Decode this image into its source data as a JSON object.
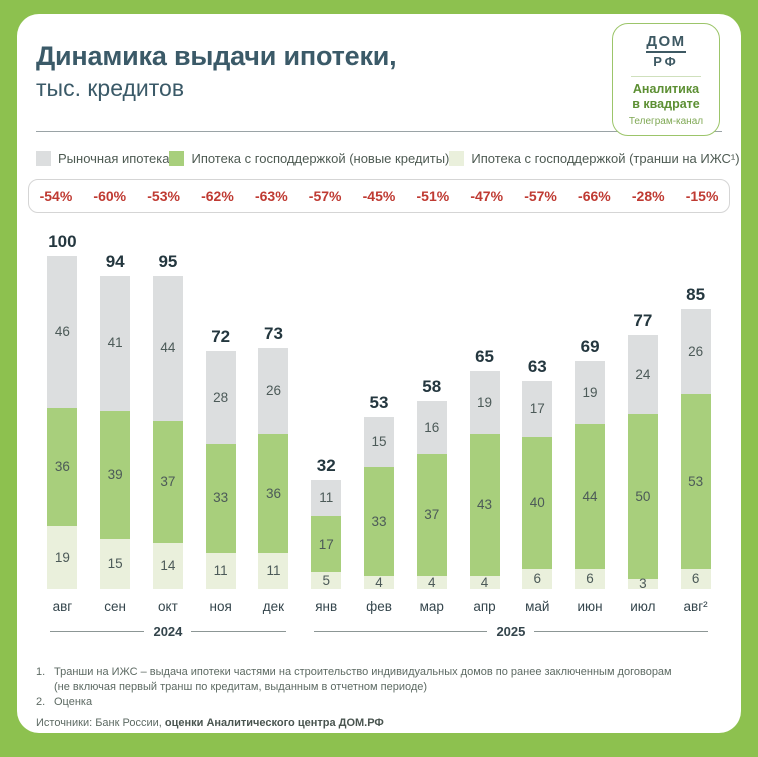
{
  "header": {
    "title": "Динамика выдачи ипотеки,",
    "subtitle": "тыс. кредитов",
    "logo": {
      "brand_top": "ДОМ",
      "brand_bottom": "РФ",
      "name_line1": "Аналитика",
      "name_line2": "в квадрате",
      "channel": "Телеграм-канал"
    }
  },
  "legend": [
    {
      "label": "Рыночная ипотека",
      "color": "#dcdedf"
    },
    {
      "label": "Ипотека с господдержкой (новые кредиты)",
      "color": "#a8cf7c"
    },
    {
      "label": "Ипотека с господдержкой (транши на ИЖС¹)",
      "color": "#eaf0dc"
    }
  ],
  "yoy_change": [
    "-54%",
    "-60%",
    "-53%",
    "-62%",
    "-63%",
    "-57%",
    "-45%",
    "-51%",
    "-47%",
    "-57%",
    "-66%",
    "-28%",
    "-15%"
  ],
  "chart_data": {
    "type": "bar",
    "stacked": true,
    "title": "Динамика выдачи ипотеки, тыс. кредитов",
    "ylabel": "тыс. кредитов",
    "categories": [
      "авг",
      "сен",
      "окт",
      "ноя",
      "дек",
      "янв",
      "фев",
      "мар",
      "апр",
      "май",
      "июн",
      "июл",
      "авг²"
    ],
    "totals": [
      100,
      94,
      95,
      72,
      73,
      32,
      53,
      58,
      65,
      63,
      69,
      77,
      85
    ],
    "series": [
      {
        "name": "Рыночная ипотека",
        "color": "#dcdedf",
        "values": [
          46,
          41,
          44,
          28,
          26,
          11,
          15,
          16,
          19,
          17,
          19,
          24,
          26
        ]
      },
      {
        "name": "Ипотека с господдержкой (новые кредиты)",
        "color": "#a8cf7c",
        "values": [
          36,
          39,
          37,
          33,
          36,
          17,
          33,
          37,
          43,
          40,
          44,
          50,
          53
        ]
      },
      {
        "name": "Ипотека с господдержкой (транши на ИЖС¹)",
        "color": "#eaf0dc",
        "values": [
          19,
          15,
          14,
          11,
          11,
          5,
          4,
          4,
          4,
          6,
          6,
          3,
          6
        ]
      }
    ],
    "yoy_change": [
      "-54%",
      "-60%",
      "-53%",
      "-62%",
      "-63%",
      "-57%",
      "-45%",
      "-51%",
      "-47%",
      "-57%",
      "-66%",
      "-28%",
      "-15%"
    ],
    "year_groups": [
      {
        "label": "2024",
        "span": 5
      },
      {
        "label": "2025",
        "span": 8
      }
    ],
    "legend_position": "top",
    "grid": false
  },
  "footnotes": {
    "note1_num": "1.",
    "note1": "Транши на ИЖС – выдача ипотеки частями на строительство индивидуальных домов по ранее заключенным договорам",
    "note1b": "(не включая первый транш по кредитам, выданным в отчетном периоде)",
    "note2_num": "2.",
    "note2": "Оценка",
    "source_prefix": "Источники: Банк России, ",
    "source_bold": "оценки Аналитического центра ДОМ.РФ"
  }
}
